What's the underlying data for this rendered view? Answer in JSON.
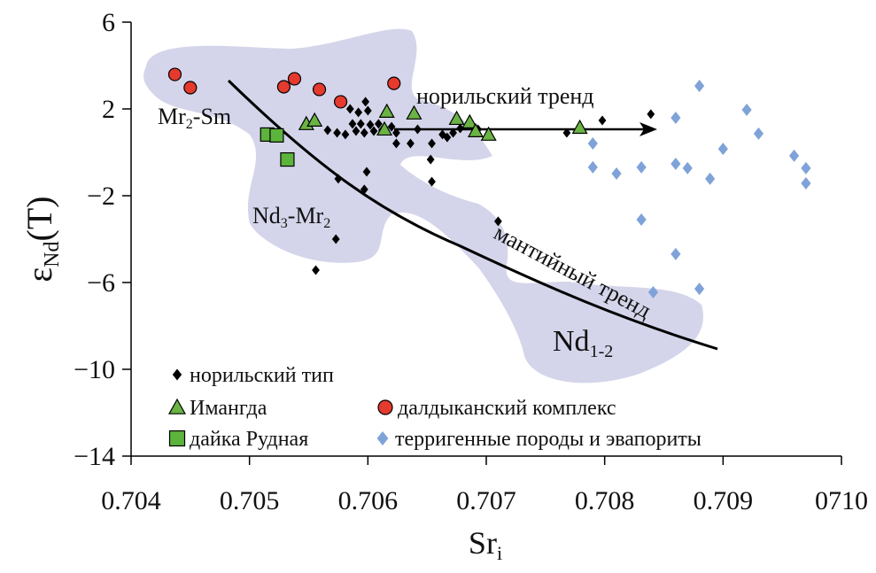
{
  "chart_data": {
    "type": "scatter",
    "y_label": [
      {
        "text": "ε"
      },
      {
        "text": "Nd",
        "sub": true
      },
      {
        "text": "(T)"
      }
    ],
    "x_label": [
      {
        "text": "Sr"
      },
      {
        "text": "i",
        "sub": true
      }
    ],
    "xlim": [
      0.704,
      0.71
    ],
    "ylim": [
      -14,
      6
    ],
    "xticks": [
      0.704,
      0.705,
      0.706,
      0.707,
      0.708,
      0.709,
      {
        "value": 0.71,
        "label": "0710"
      }
    ],
    "yticks": [
      {
        "value": -14,
        "label": "−14"
      },
      {
        "value": -10,
        "label": "−10"
      },
      {
        "value": -6,
        "label": "−6"
      },
      {
        "value": -2,
        "label": "−2"
      },
      2,
      6
    ],
    "annotations": [
      [
        {
          "text": "Mr"
        },
        {
          "text": "2",
          "sub": true
        },
        {
          "text": "-Sm"
        }
      ],
      [
        {
          "text": "Nd"
        },
        {
          "text": "3",
          "sub": true
        },
        {
          "text": "-Mr"
        },
        {
          "text": "2",
          "sub": true
        }
      ],
      [
        {
          "text": "Nd"
        },
        {
          "text": "1-2",
          "sub": true
        }
      ],
      [
        {
          "text": "норильский тренд"
        }
      ],
      [
        {
          "text": "мантийный тренд"
        }
      ]
    ],
    "series": [
      {
        "name": "норильский тип",
        "color": "#000000",
        "marker": "diamond",
        "x": [
          0.70556,
          0.70573,
          0.70575,
          0.70597,
          0.70599,
          0.70654,
          0.70653,
          0.7071,
          0.70798,
          0.70839,
          0.70768,
          0.70624,
          0.70636,
          0.70654,
          0.70598,
          0.70585,
          0.70592,
          0.706,
          0.70587,
          0.70594,
          0.70602,
          0.70609,
          0.7059,
          0.70597,
          0.70605,
          0.70574,
          0.70566,
          0.70581,
          0.70612,
          0.70624,
          0.7062,
          0.70642,
          0.70667,
          0.70672,
          0.70678,
          0.70663,
          0.70693
        ],
        "values": [
          -5.43,
          -4.0,
          -1.22,
          -1.71,
          -0.9,
          -1.35,
          -0.33,
          -3.18,
          1.47,
          1.76,
          0.9,
          0.41,
          0.41,
          0.41,
          2.33,
          2.0,
          1.84,
          1.92,
          1.31,
          1.31,
          1.27,
          1.31,
          0.98,
          0.9,
          0.98,
          0.9,
          1.02,
          0.82,
          1.02,
          0.9,
          1.18,
          1.06,
          0.69,
          0.9,
          1.1,
          0.82,
          1.06
        ]
      },
      {
        "name": "Имангда",
        "color": "#6ab344",
        "marker": "triangle",
        "x": [
          0.70548,
          0.70555,
          0.70616,
          0.70639,
          0.70614,
          0.70675,
          0.70686,
          0.70691,
          0.70702,
          0.70779
        ],
        "values": [
          1.31,
          1.47,
          1.88,
          1.8,
          1.06,
          1.55,
          1.39,
          0.98,
          0.82,
          1.14
        ]
      },
      {
        "name": "далдыканский комплекс",
        "color": "#e53a2e",
        "marker": "circle",
        "x": [
          0.70437,
          0.7045,
          0.70529,
          0.70538,
          0.70559,
          0.70577,
          0.70622
        ],
        "values": [
          3.59,
          2.98,
          3.02,
          3.39,
          2.9,
          2.33,
          3.18
        ]
      },
      {
        "name": "дайка Рудная",
        "color": "#5cb43c",
        "marker": "square",
        "x": [
          0.70515,
          0.70523,
          0.70532
        ],
        "values": [
          0.82,
          0.78,
          -0.33
        ]
      },
      {
        "name": "терригенные породы и эвапориты",
        "color": "#7fa3d8",
        "marker": "diamond",
        "x": [
          0.7088,
          0.7092,
          0.7086,
          0.7093,
          0.7079,
          0.709,
          0.7096,
          0.7097,
          0.7079,
          0.7081,
          0.70831,
          0.7086,
          0.7087,
          0.70889,
          0.7097,
          0.70831,
          0.7086,
          0.7088,
          0.70841
        ],
        "values": [
          3.06,
          1.96,
          1.59,
          0.86,
          0.41,
          0.16,
          -0.16,
          -0.73,
          -0.69,
          -0.98,
          -0.69,
          -0.53,
          -0.73,
          -1.22,
          -1.43,
          -3.1,
          -4.69,
          -6.29,
          -6.45
        ]
      }
    ]
  }
}
